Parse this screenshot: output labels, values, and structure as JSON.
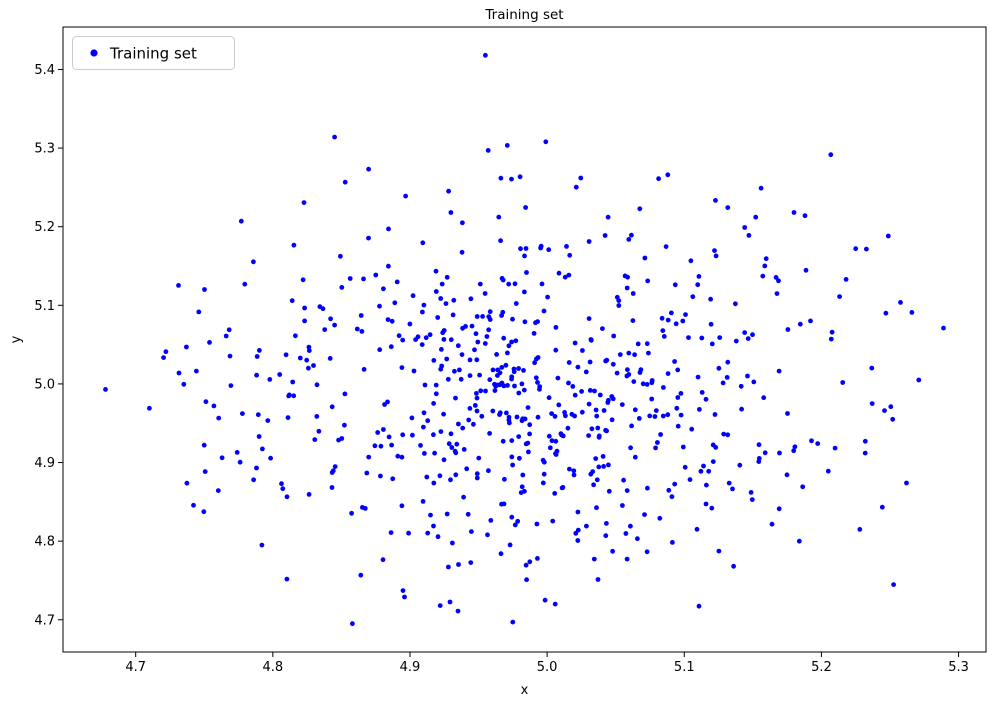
{
  "page": {
    "background": "#ffffff"
  },
  "chart_data": {
    "type": "scatter",
    "title": "Training set",
    "xlabel": "x",
    "ylabel": "y",
    "xlim": [
      4.647,
      5.32
    ],
    "ylim": [
      4.659,
      5.454
    ],
    "xticks": [
      4.7,
      4.8,
      4.9,
      5.0,
      5.1,
      5.2,
      5.3
    ],
    "yticks": [
      4.7,
      4.8,
      4.9,
      5.0,
      5.1,
      5.2,
      5.3,
      5.4
    ],
    "grid": false,
    "legend": {
      "position": "upper-left",
      "entries": [
        {
          "label": "Training set",
          "marker": "dot",
          "color": "#0000ff"
        }
      ]
    },
    "marker": {
      "shape": "circle",
      "color": "#0000ff",
      "radius_px": 2.4
    },
    "distribution": {
      "kind": "gaussian",
      "n": 640,
      "mean": [
        4.99,
        4.99
      ],
      "std": [
        0.105,
        0.115
      ],
      "seed": 12,
      "clip_x": [
        4.705,
        5.272
      ],
      "clip_y": [
        4.712,
        5.315
      ]
    },
    "outlier_points": [
      [
        4.955,
        5.418
      ],
      [
        4.845,
        5.314
      ],
      [
        4.999,
        5.308
      ],
      [
        4.957,
        5.297
      ],
      [
        4.678,
        4.993
      ],
      [
        4.71,
        4.969
      ],
      [
        4.722,
        5.041
      ],
      [
        4.737,
        5.047
      ],
      [
        5.289,
        5.071
      ],
      [
        5.271,
        5.005
      ],
      [
        5.262,
        4.874
      ],
      [
        5.246,
        4.966
      ],
      [
        5.228,
        4.815
      ],
      [
        5.225,
        5.172
      ],
      [
        4.858,
        4.695
      ],
      [
        4.975,
        4.697
      ],
      [
        4.896,
        4.729
      ],
      [
        4.922,
        4.718
      ],
      [
        4.935,
        4.711
      ],
      [
        5.136,
        4.768
      ],
      [
        4.985,
        4.751
      ],
      [
        4.792,
        4.795
      ],
      [
        4.777,
        5.207
      ],
      [
        5.088,
        5.266
      ],
      [
        5.156,
        5.249
      ],
      [
        5.18,
        5.218
      ],
      [
        5.188,
        5.214
      ],
      [
        4.757,
        4.972
      ],
      [
        4.766,
        5.061
      ],
      [
        4.763,
        4.906
      ],
      [
        4.786,
        4.878
      ],
      [
        5.247,
        5.09
      ],
      [
        5.237,
        4.975
      ],
      [
        5.205,
        4.889
      ],
      [
        5.218,
        5.133
      ],
      [
        4.805,
        5.012
      ],
      [
        4.812,
        4.986
      ],
      [
        5.232,
        4.927
      ],
      [
        5.252,
        4.955
      ],
      [
        5.266,
        5.091
      ]
    ]
  }
}
